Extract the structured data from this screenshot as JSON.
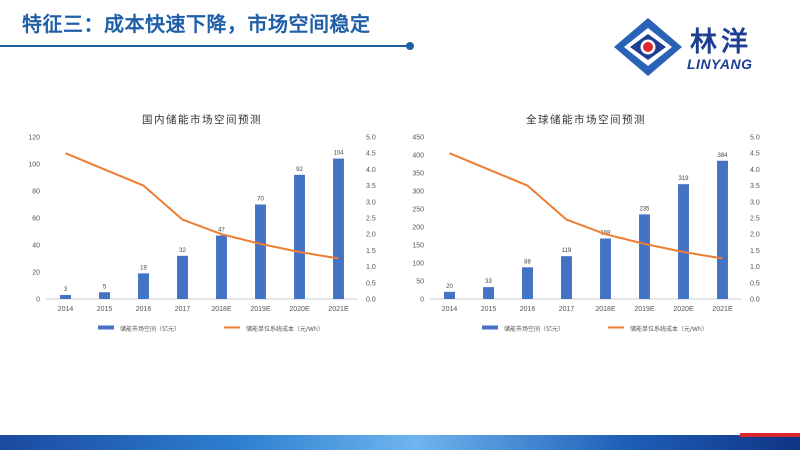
{
  "slide": {
    "title": "特征三：成本快速下降，市场空间稳定"
  },
  "logo": {
    "name_cn": "林洋",
    "name_en": "LINYANG"
  },
  "colors": {
    "title_blue": "#1f5fa8",
    "bar_blue": "#4472c4",
    "line_orange": "#ed7d31"
  },
  "chart_data": [
    {
      "type": "bar+line",
      "title": "国内储能市场空间预测",
      "categories": [
        "2014",
        "2015",
        "2016",
        "2017",
        "2018E",
        "2019E",
        "2020E",
        "2021E"
      ],
      "series": [
        {
          "name": "储能市场空间（亿元）",
          "type": "bar",
          "axis": "left",
          "values": [
            3,
            5,
            19,
            32,
            47,
            70,
            92,
            104
          ]
        },
        {
          "name": "储能单位系统成本（元/Wh）",
          "type": "line",
          "axis": "right",
          "values": [
            4.5,
            4.0,
            3.5,
            2.45,
            2.0,
            1.7,
            1.45,
            1.25
          ]
        }
      ],
      "y_left": {
        "lim": [
          0,
          120
        ],
        "ticks": [
          0,
          20,
          40,
          60,
          80,
          100,
          120
        ],
        "tick_labels": [
          "0",
          "20",
          "40",
          "60",
          "80",
          "100",
          "120"
        ]
      },
      "y_right": {
        "lim": [
          0,
          5
        ],
        "ticks": [
          0,
          0.5,
          1,
          1.5,
          2,
          2.5,
          3,
          3.5,
          4,
          4.5,
          5
        ],
        "tick_labels": [
          "0.0",
          "0.5",
          "1.0",
          "1.5",
          "2.0",
          "2.5",
          "3.0",
          "3.5",
          "4.0",
          "4.5",
          "5.0"
        ]
      },
      "data_labels": [
        "3",
        "5",
        "19",
        "32",
        "47",
        "70",
        "92",
        "104"
      ],
      "legend_position": "bottom",
      "grid": false
    },
    {
      "type": "bar+line",
      "title": "全球储能市场空间预测",
      "categories": [
        "2014",
        "2015",
        "2016",
        "2017",
        "2018E",
        "2019E",
        "2020E",
        "2021E"
      ],
      "series": [
        {
          "name": "储能市场空间（亿元）",
          "type": "bar",
          "axis": "left",
          "values": [
            20,
            33,
            88,
            119,
            168,
            235,
            319,
            384
          ]
        },
        {
          "name": "储能单位系统成本（元/Wh）",
          "type": "line",
          "axis": "right",
          "values": [
            4.5,
            4.0,
            3.5,
            2.45,
            2.0,
            1.7,
            1.45,
            1.25
          ]
        }
      ],
      "y_left": {
        "lim": [
          0,
          450
        ],
        "ticks": [
          0,
          50,
          100,
          150,
          200,
          250,
          300,
          350,
          400,
          450
        ],
        "tick_labels": [
          "0",
          "50",
          "100",
          "150",
          "200",
          "250",
          "300",
          "350",
          "400",
          "450"
        ]
      },
      "y_right": {
        "lim": [
          0,
          5
        ],
        "ticks": [
          0,
          0.5,
          1,
          1.5,
          2,
          2.5,
          3,
          3.5,
          4,
          4.5,
          5
        ],
        "tick_labels": [
          "0.0",
          "0.5",
          "1.0",
          "1.5",
          "2.0",
          "2.5",
          "3.0",
          "3.5",
          "4.0",
          "4.5",
          "5.0"
        ]
      },
      "data_labels": [
        "20",
        "33",
        "88",
        "119",
        "168",
        "235",
        "319",
        "384"
      ],
      "legend_position": "bottom",
      "grid": false
    }
  ]
}
